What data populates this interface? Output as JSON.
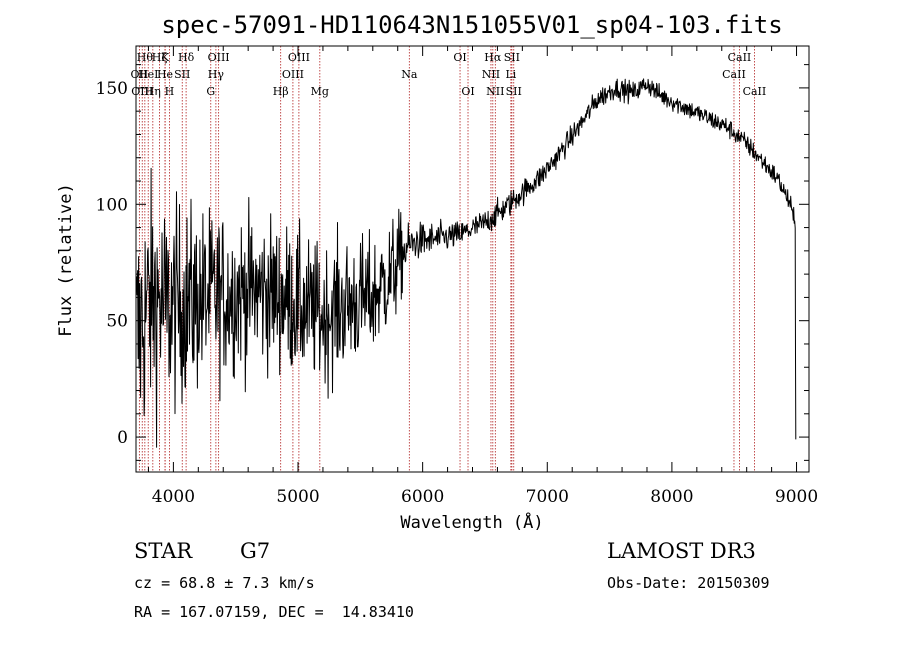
{
  "chart_data": {
    "type": "line",
    "title": "spec-57091-HD110643N151055V01_sp04-103.fits",
    "xlabel": "Wavelength (Å)",
    "ylabel": "Flux (relative)",
    "xlim": [
      3700,
      9100
    ],
    "ylim": [
      -15,
      168
    ],
    "xticks": [
      4000,
      5000,
      6000,
      7000,
      8000,
      9000
    ],
    "yticks": [
      0,
      50,
      100,
      150
    ],
    "grid": false,
    "line_color": "#000000",
    "marker_color": "#b22222",
    "spectral_lines": [
      {
        "wavelength": 3727,
        "label": "OII",
        "row": 1
      },
      {
        "wavelength": 3750,
        "label": "OIII",
        "row": 2
      },
      {
        "wavelength": 3771,
        "label": "Hθ",
        "row": 0
      },
      {
        "wavelength": 3798,
        "label": "HeI",
        "row": 1
      },
      {
        "wavelength": 3835,
        "label": "Hη",
        "row": 2
      },
      {
        "wavelength": 3889,
        "label": "Hζ",
        "row": 0
      },
      {
        "wavelength": 3934,
        "label": "K",
        "row": 0
      },
      {
        "wavelength": 3933,
        "label": "He",
        "row": 1
      },
      {
        "wavelength": 3968,
        "label": "H",
        "row": 2
      },
      {
        "wavelength": 4071,
        "label": "SII",
        "row": 1
      },
      {
        "wavelength": 4102,
        "label": "Hδ",
        "row": 0
      },
      {
        "wavelength": 4300,
        "label": "G",
        "row": 2
      },
      {
        "wavelength": 4341,
        "label": "Hγ",
        "row": 1
      },
      {
        "wavelength": 4363,
        "label": "OIII",
        "row": 0
      },
      {
        "wavelength": 4861,
        "label": "Hβ",
        "row": 2
      },
      {
        "wavelength": 4959,
        "label": "OIII",
        "row": 1
      },
      {
        "wavelength": 5007,
        "label": "OIII",
        "row": 0
      },
      {
        "wavelength": 5175,
        "label": "Mg",
        "row": 2
      },
      {
        "wavelength": 5893,
        "label": "Na",
        "row": 1
      },
      {
        "wavelength": 6300,
        "label": "OI",
        "row": 0
      },
      {
        "wavelength": 6364,
        "label": "OI",
        "row": 2
      },
      {
        "wavelength": 6548,
        "label": "NII",
        "row": 1
      },
      {
        "wavelength": 6563,
        "label": "Hα",
        "row": 0
      },
      {
        "wavelength": 6583,
        "label": "NII",
        "row": 2
      },
      {
        "wavelength": 6708,
        "label": "Li",
        "row": 1
      },
      {
        "wavelength": 6716,
        "label": "SII",
        "row": 0
      },
      {
        "wavelength": 6731,
        "label": "SII",
        "row": 2
      },
      {
        "wavelength": 8498,
        "label": "CaII",
        "row": 1
      },
      {
        "wavelength": 8542,
        "label": "CaII",
        "row": 0
      },
      {
        "wavelength": 8662,
        "label": "CaII",
        "row": 2
      }
    ],
    "flux": {
      "anchors_x": [
        3700,
        3780,
        3850,
        3950,
        4100,
        4300,
        4500,
        4700,
        4900,
        5050,
        5200,
        5300,
        5450,
        5600,
        5750,
        5880,
        5950,
        6100,
        6300,
        6500,
        6650,
        6800,
        6950,
        7100,
        7250,
        7400,
        7550,
        7700,
        7800,
        7900,
        8050,
        8250,
        8450,
        8600,
        8750,
        8850,
        8950,
        8990
      ],
      "anchors_y": [
        40,
        55,
        60,
        55,
        58,
        60,
        62,
        63,
        60,
        55,
        52,
        55,
        58,
        60,
        70,
        82,
        84,
        85,
        87,
        92,
        98,
        105,
        112,
        122,
        133,
        145,
        150,
        148,
        152,
        147,
        143,
        138,
        133,
        126,
        117,
        111,
        100,
        90
      ],
      "noise_x": [
        3700,
        3950,
        4200,
        4500,
        5000,
        5450,
        5800,
        5890,
        6300,
        6600,
        7000,
        8000,
        9000
      ],
      "noise_y": [
        40,
        32,
        28,
        24,
        22,
        20,
        16,
        6,
        4,
        4,
        3.5,
        3,
        3
      ]
    }
  },
  "info": {
    "object_type": "STAR",
    "subclass": "G7",
    "survey": "LAMOST DR3",
    "cz": "cz = 68.8 ± 7.3 km/s",
    "obs_date": "Obs-Date: 20150309",
    "coords": "RA = 167.07159, DEC =  14.83410"
  }
}
